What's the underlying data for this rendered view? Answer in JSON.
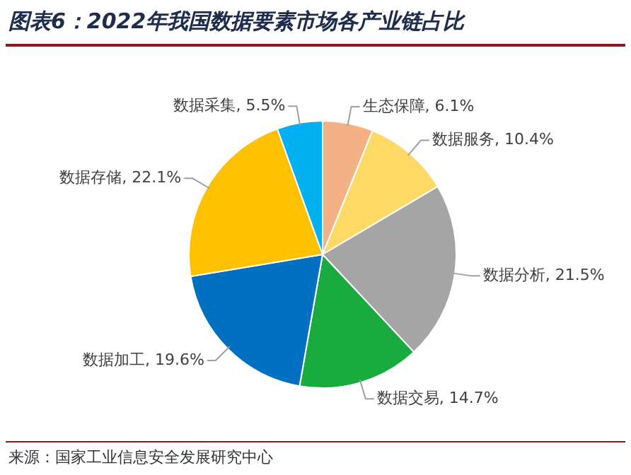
{
  "chart_data": {
    "type": "pie",
    "title": "图表6：2022年我国数据要素市场各产业链占比",
    "categories": [
      "生态保障",
      "数据服务",
      "数据分析",
      "数据交易",
      "数据加工",
      "数据存储",
      "数据采集"
    ],
    "values": [
      6.1,
      10.4,
      21.5,
      14.7,
      19.6,
      22.1,
      5.5
    ],
    "value_labels": [
      "6.1%",
      "10.4%",
      "21.5%",
      "14.7%",
      "19.6%",
      "22.1%",
      "5.5%"
    ],
    "colors": [
      "#f4b183",
      "#ffd966",
      "#a5a5a5",
      "#1aab40",
      "#0070c0",
      "#ffc000",
      "#00b0f0"
    ],
    "legend": false,
    "annotations": [
      "来源：国家工业信息安全发展研究中心"
    ]
  }
}
